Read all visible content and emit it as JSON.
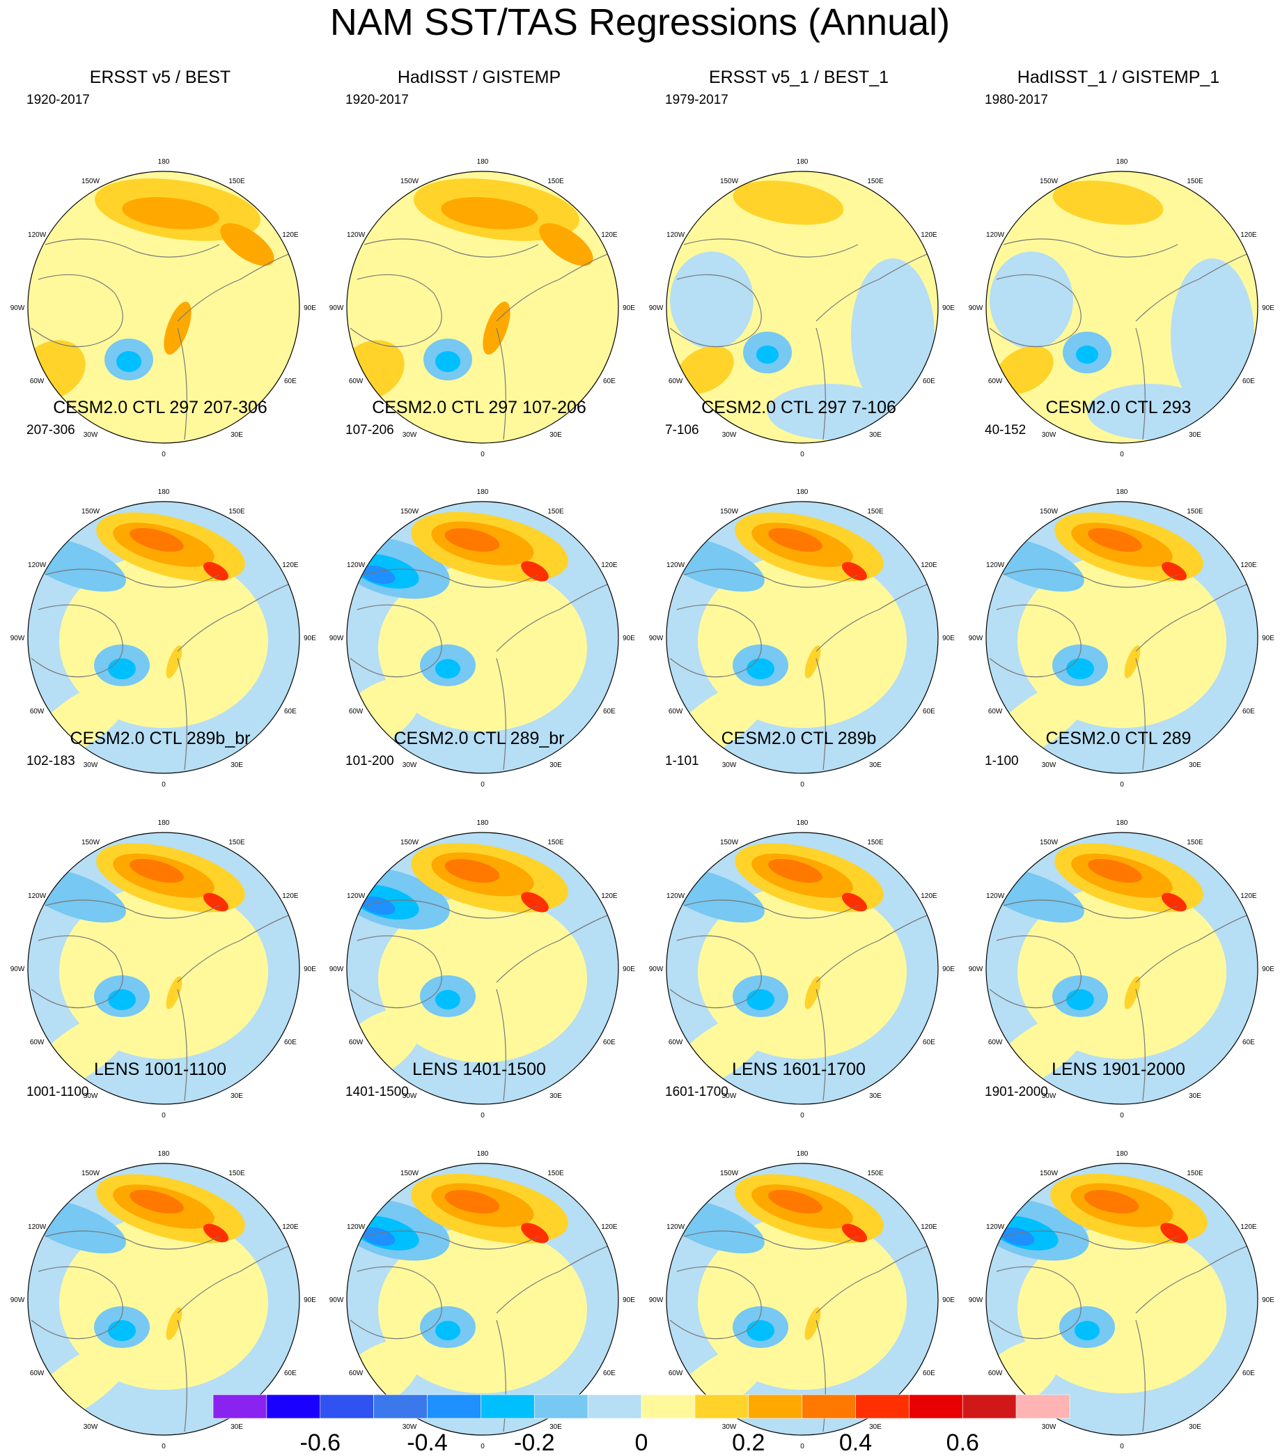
{
  "title": "NAM SST/TAS Regressions (Annual)",
  "chart_data": {
    "type": "heatmap",
    "projection": "north-polar-stereographic",
    "title": "NAM SST/TAS Regressions (Annual)",
    "longitude_labels": [
      "180",
      "150E",
      "120E",
      "90E",
      "60E",
      "30E",
      "0",
      "30W",
      "60W",
      "90W",
      "120W",
      "150W"
    ],
    "panels": [
      {
        "title": "ERSST v5 / BEST",
        "period": "1920-2017",
        "pattern": "obs"
      },
      {
        "title": "HadISST / GISTEMP",
        "period": "1920-2017",
        "pattern": "obs"
      },
      {
        "title": "ERSST v5_1 / BEST_1",
        "period": "1979-2017",
        "pattern": "obs-recent"
      },
      {
        "title": "HadISST_1 / GISTEMP_1",
        "period": "1980-2017",
        "pattern": "obs-recent"
      },
      {
        "title": "CESM2.0 CTL 297 207-306",
        "period": "207-306",
        "pattern": "model"
      },
      {
        "title": "CESM2.0 CTL 297 107-206",
        "period": "107-206",
        "pattern": "model-strong"
      },
      {
        "title": "CESM2.0 CTL 297 7-106",
        "period": "7-106",
        "pattern": "model"
      },
      {
        "title": "CESM2.0 CTL 293",
        "period": "40-152",
        "pattern": "model"
      },
      {
        "title": "CESM2.0 CTL 289b_br",
        "period": "102-183",
        "pattern": "model"
      },
      {
        "title": "CESM2.0 CTL 289_br",
        "period": "101-200",
        "pattern": "model-strong"
      },
      {
        "title": "CESM2.0 CTL 289b",
        "period": "1-101",
        "pattern": "model"
      },
      {
        "title": "CESM2.0 CTL 289",
        "period": "1-100",
        "pattern": "model"
      },
      {
        "title": "LENS 1001-1100",
        "period": "1001-1100",
        "pattern": "model"
      },
      {
        "title": "LENS 1401-1500",
        "period": "1401-1500",
        "pattern": "model-strong"
      },
      {
        "title": "LENS 1601-1700",
        "period": "1601-1700",
        "pattern": "model"
      },
      {
        "title": "LENS 1901-2000",
        "period": "1901-2000",
        "pattern": "model-strong"
      }
    ],
    "colorbar": {
      "levels": [
        -0.7,
        -0.6,
        -0.5,
        -0.4,
        -0.3,
        -0.2,
        -0.1,
        0,
        0.1,
        0.2,
        0.3,
        0.4,
        0.5,
        0.6,
        0.7
      ],
      "colors": [
        "#8a22f0",
        "#1a00ff",
        "#2f52f0",
        "#3a78ec",
        "#1e90ff",
        "#00bfff",
        "#77c8f2",
        "#b6def4",
        "#fff99c",
        "#ffd32a",
        "#ffa800",
        "#ff7800",
        "#ff3000",
        "#e80000",
        "#d01818",
        "#ffb3b3"
      ],
      "tick_labels": [
        "-0.6",
        "-0.4",
        "-0.2",
        "0",
        "0.2",
        "0.4",
        "0.6"
      ],
      "tick_values": [
        -0.6,
        -0.4,
        -0.2,
        0,
        0.2,
        0.4,
        0.6
      ]
    }
  }
}
